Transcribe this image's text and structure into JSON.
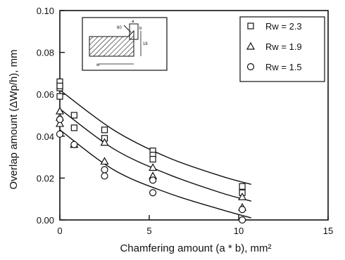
{
  "chart_data": {
    "type": "scatter",
    "xlabel": "Chamfering amount (a * b), mm²",
    "ylabel": "Overlap amount (ΔWp/h), mm",
    "xlim": [
      0,
      15
    ],
    "ylim": [
      0,
      0.1
    ],
    "xticks": [
      "0",
      "5",
      "10",
      "15"
    ],
    "yticks": [
      "0.00",
      "0.02",
      "0.04",
      "0.06",
      "0.08",
      "0.10"
    ],
    "grid": false,
    "legend_position": "top-right",
    "series": [
      {
        "name": "Rw = 2.3",
        "marker": "square",
        "x": [
          0,
          0,
          0,
          0,
          0.8,
          0.8,
          2.5,
          2.5,
          5.2,
          5.2,
          5.2,
          10.2,
          10.2
        ],
        "y": [
          0.066,
          0.063,
          0.059,
          0.064,
          0.05,
          0.044,
          0.043,
          0.039,
          0.033,
          0.031,
          0.029,
          0.016,
          0.013
        ],
        "fit": {
          "x": [
            0,
            3,
            6,
            9,
            10.7
          ],
          "y": [
            0.062,
            0.043,
            0.03,
            0.021,
            0.017
          ]
        }
      },
      {
        "name": "Rw = 1.9",
        "marker": "triangle",
        "x": [
          0,
          0,
          0,
          0.8,
          2.5,
          2.5,
          5.2,
          5.2,
          10.2,
          10.2
        ],
        "y": [
          0.052,
          0.049,
          0.046,
          0.036,
          0.037,
          0.028,
          0.025,
          0.021,
          0.011,
          0.006
        ],
        "fit": {
          "x": [
            0,
            3,
            6,
            9,
            10.7
          ],
          "y": [
            0.053,
            0.034,
            0.022,
            0.013,
            0.009
          ]
        }
      },
      {
        "name": "Rw = 1.5",
        "marker": "circle",
        "x": [
          0,
          0,
          0.8,
          2.5,
          2.5,
          5.2,
          5.2,
          10.2,
          10.2
        ],
        "y": [
          0.048,
          0.041,
          0.036,
          0.024,
          0.021,
          0.019,
          0.013,
          0.005,
          0.0
        ],
        "fit": {
          "x": [
            0,
            3,
            6,
            9,
            10.7
          ],
          "y": [
            0.043,
            0.024,
            0.013,
            0.005,
            0.001
          ]
        }
      }
    ],
    "inset": {
      "labels": [
        "60",
        "a",
        "b",
        "16",
        "w"
      ]
    }
  }
}
